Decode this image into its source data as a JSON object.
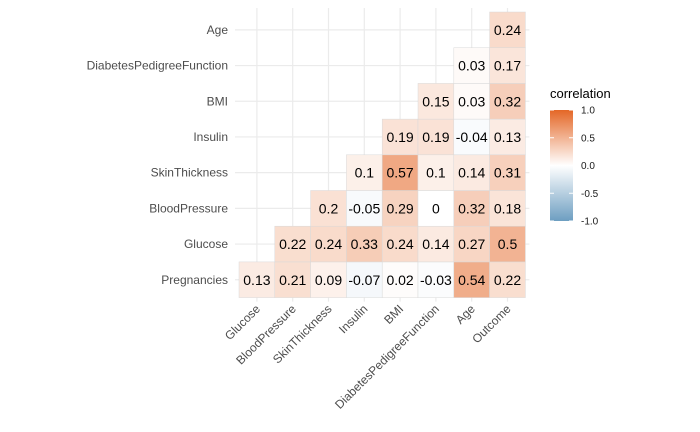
{
  "chart_data": {
    "type": "heatmap",
    "title": "",
    "xlabel": "",
    "ylabel": "",
    "x_categories": [
      "Glucose",
      "BloodPressure",
      "SkinThickness",
      "Insulin",
      "BMI",
      "DiabetesPedigreeFunction",
      "Age",
      "Outcome"
    ],
    "y_categories": [
      "Pregnancies",
      "Glucose",
      "BloodPressure",
      "SkinThickness",
      "Insulin",
      "BMI",
      "DiabetesPedigreeFunction",
      "Age"
    ],
    "cells": [
      {
        "x": "Glucose",
        "y": "Pregnancies",
        "value": 0.13,
        "label": "0.13"
      },
      {
        "x": "BloodPressure",
        "y": "Pregnancies",
        "value": 0.21,
        "label": "0.21"
      },
      {
        "x": "SkinThickness",
        "y": "Pregnancies",
        "value": 0.09,
        "label": "0.09"
      },
      {
        "x": "Insulin",
        "y": "Pregnancies",
        "value": -0.07,
        "label": "-0.07"
      },
      {
        "x": "BMI",
        "y": "Pregnancies",
        "value": 0.02,
        "label": "0.02"
      },
      {
        "x": "DiabetesPedigreeFunction",
        "y": "Pregnancies",
        "value": -0.03,
        "label": "-0.03"
      },
      {
        "x": "Age",
        "y": "Pregnancies",
        "value": 0.54,
        "label": "0.54"
      },
      {
        "x": "Outcome",
        "y": "Pregnancies",
        "value": 0.22,
        "label": "0.22"
      },
      {
        "x": "BloodPressure",
        "y": "Glucose",
        "value": 0.22,
        "label": "0.22"
      },
      {
        "x": "SkinThickness",
        "y": "Glucose",
        "value": 0.24,
        "label": "0.24"
      },
      {
        "x": "Insulin",
        "y": "Glucose",
        "value": 0.33,
        "label": "0.33"
      },
      {
        "x": "BMI",
        "y": "Glucose",
        "value": 0.24,
        "label": "0.24"
      },
      {
        "x": "DiabetesPedigreeFunction",
        "y": "Glucose",
        "value": 0.14,
        "label": "0.14"
      },
      {
        "x": "Age",
        "y": "Glucose",
        "value": 0.27,
        "label": "0.27"
      },
      {
        "x": "Outcome",
        "y": "Glucose",
        "value": 0.5,
        "label": "0.5"
      },
      {
        "x": "SkinThickness",
        "y": "BloodPressure",
        "value": 0.2,
        "label": "0.2"
      },
      {
        "x": "Insulin",
        "y": "BloodPressure",
        "value": -0.05,
        "label": "-0.05"
      },
      {
        "x": "BMI",
        "y": "BloodPressure",
        "value": 0.29,
        "label": "0.29"
      },
      {
        "x": "DiabetesPedigreeFunction",
        "y": "BloodPressure",
        "value": 0,
        "label": "0"
      },
      {
        "x": "Age",
        "y": "BloodPressure",
        "value": 0.32,
        "label": "0.32"
      },
      {
        "x": "Outcome",
        "y": "BloodPressure",
        "value": 0.18,
        "label": "0.18"
      },
      {
        "x": "Insulin",
        "y": "SkinThickness",
        "value": 0.1,
        "label": "0.1"
      },
      {
        "x": "BMI",
        "y": "SkinThickness",
        "value": 0.57,
        "label": "0.57"
      },
      {
        "x": "DiabetesPedigreeFunction",
        "y": "SkinThickness",
        "value": 0.1,
        "label": "0.1"
      },
      {
        "x": "Age",
        "y": "SkinThickness",
        "value": 0.14,
        "label": "0.14"
      },
      {
        "x": "Outcome",
        "y": "SkinThickness",
        "value": 0.31,
        "label": "0.31"
      },
      {
        "x": "BMI",
        "y": "Insulin",
        "value": 0.19,
        "label": "0.19"
      },
      {
        "x": "DiabetesPedigreeFunction",
        "y": "Insulin",
        "value": 0.19,
        "label": "0.19"
      },
      {
        "x": "Age",
        "y": "Insulin",
        "value": -0.04,
        "label": "-0.04"
      },
      {
        "x": "Outcome",
        "y": "Insulin",
        "value": 0.13,
        "label": "0.13"
      },
      {
        "x": "DiabetesPedigreeFunction",
        "y": "BMI",
        "value": 0.15,
        "label": "0.15"
      },
      {
        "x": "Age",
        "y": "BMI",
        "value": 0.03,
        "label": "0.03"
      },
      {
        "x": "Outcome",
        "y": "BMI",
        "value": 0.32,
        "label": "0.32"
      },
      {
        "x": "Age",
        "y": "DiabetesPedigreeFunction",
        "value": 0.03,
        "label": "0.03"
      },
      {
        "x": "Outcome",
        "y": "DiabetesPedigreeFunction",
        "value": 0.17,
        "label": "0.17"
      },
      {
        "x": "Outcome",
        "y": "Age",
        "value": 0.24,
        "label": "0.24"
      }
    ],
    "color_scale": {
      "low_color": "#6d9ec1",
      "mid_color": "#ffffff",
      "high_color": "#e46726",
      "limits": [
        -1,
        1
      ]
    },
    "legend": {
      "title": "correlation",
      "ticks": [
        1.0,
        0.5,
        0.0,
        -0.5,
        -1.0
      ],
      "tick_labels": [
        "1.0",
        "0.5",
        "0.0",
        "-0.5",
        "-1.0"
      ],
      "placement": "right"
    },
    "grid": true
  }
}
